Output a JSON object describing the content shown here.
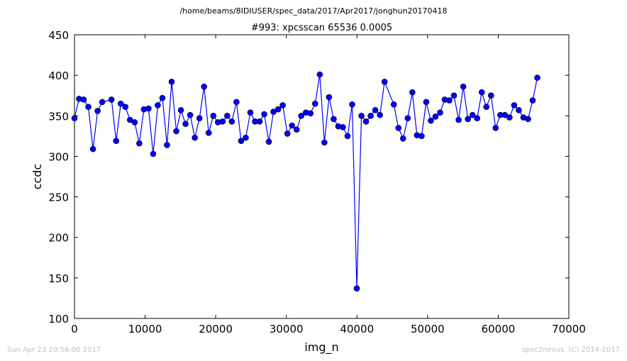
{
  "figure": {
    "suptitle": "/home/beams/8IDIUSER/spec_data/2017/Apr2017/jonghun20170418",
    "footer_left": "Sun Apr 23 20:56:06 2017",
    "footer_right": "spec2nexus, (C) 2014-2017"
  },
  "chart_data": {
    "type": "line",
    "title": "#993: xpcsscan 65536 0.0005",
    "xlabel": "img_n",
    "ylabel": "ccdc",
    "xlim": [
      0,
      70000
    ],
    "ylim": [
      100,
      450
    ],
    "xticks": [
      0,
      10000,
      20000,
      30000,
      40000,
      50000,
      60000,
      70000
    ],
    "yticks": [
      100,
      150,
      200,
      250,
      300,
      350,
      400,
      450
    ],
    "grid": false,
    "line_color": "#0000ff",
    "marker": "circle",
    "series": [
      {
        "x": [
          0,
          655,
          1311,
          1966,
          2621,
          3277,
          3932,
          5243,
          5898,
          6554,
          7209,
          7864,
          8520,
          9175,
          9830,
          10486,
          11141,
          11796,
          12452,
          13107,
          13762,
          14418,
          15073,
          15728,
          16384,
          17039,
          17694,
          18350,
          19005,
          19661,
          20316,
          20971,
          21627,
          22282,
          22937,
          23593,
          24248,
          24903,
          25559,
          26214,
          26869,
          27525,
          28180,
          28835,
          29491,
          30146,
          30802,
          31457,
          32112,
          32768,
          33423,
          34078,
          34734,
          35389,
          36044,
          36700,
          37355,
          38010,
          38666,
          39321,
          39976,
          40632,
          41287,
          41943,
          42598,
          43253,
          43909,
          45220,
          45875,
          46530,
          47186,
          47841,
          48496,
          49152,
          49807,
          50462,
          51118,
          51773,
          52428,
          53084,
          53739,
          54394,
          55050,
          55705,
          56360,
          57016,
          57671,
          58327,
          58982,
          59637,
          60293,
          60948,
          61603,
          62259,
          62914,
          63569,
          64225,
          64880,
          65535
        ],
        "y": [
          347,
          371,
          370,
          361,
          309,
          356,
          367,
          370,
          319,
          365,
          361,
          345,
          342,
          316,
          358,
          359,
          303,
          363,
          372,
          314,
          392,
          331,
          357,
          340,
          351,
          323,
          347,
          386,
          329,
          350,
          342,
          343,
          350,
          343,
          367,
          319,
          323,
          354,
          343,
          343,
          352,
          318,
          355,
          358,
          363,
          328,
          338,
          333,
          350,
          354,
          353,
          365,
          401,
          317,
          373,
          346,
          337,
          336,
          325,
          364,
          137,
          350,
          343,
          350,
          357,
          351,
          392,
          364,
          335,
          322,
          347,
          379,
          326,
          325,
          367,
          344,
          349,
          354,
          370,
          369,
          375,
          345,
          386,
          346,
          351,
          347,
          379,
          361,
          375,
          335,
          351,
          351,
          348,
          363,
          357,
          348,
          346,
          369,
          397
        ]
      }
    ]
  }
}
